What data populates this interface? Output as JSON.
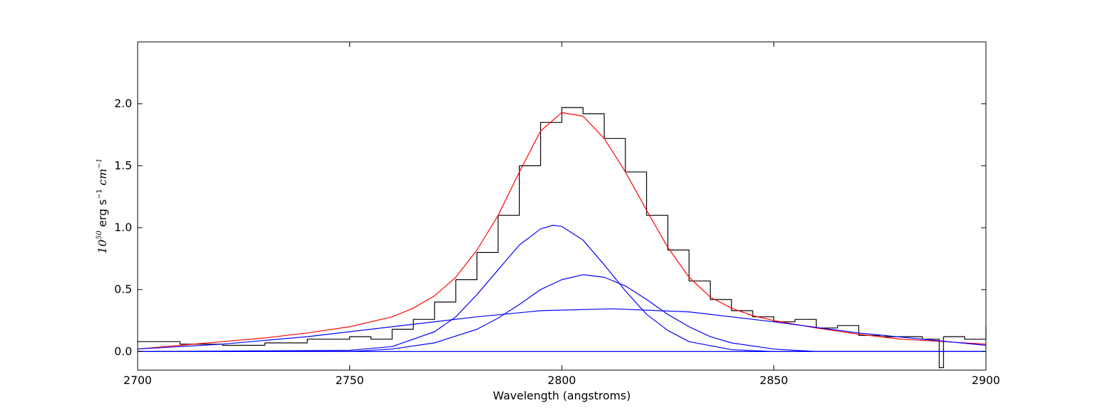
{
  "chart_data": {
    "type": "line",
    "title": "",
    "xlabel": "Wavelength (angstroms)",
    "ylabel": {
      "base": "10",
      "exponent": "50",
      "unit": "erg s",
      "unit_exponent": "−1",
      "unit2": "cm",
      "unit2_exponent": "−1"
    },
    "xlim": [
      2700,
      2900
    ],
    "ylim": [
      -0.15,
      2.5
    ],
    "xticks": [
      2700,
      2750,
      2800,
      2850,
      2900
    ],
    "xtick_labels": [
      "2700",
      "2750",
      "2800",
      "2850",
      "2900"
    ],
    "yticks": [
      0.0,
      0.5,
      1.0,
      1.5,
      2.0
    ],
    "ytick_labels": [
      "0.0",
      "0.5",
      "1.0",
      "1.5",
      "2.0"
    ],
    "grid": false,
    "legend": "none",
    "colors": {
      "data": "#000000",
      "total_fit": "#ff0000",
      "components": "#0000ff",
      "continuum": "#0000ff"
    },
    "series": [
      {
        "kind": "step",
        "color": "#000000",
        "x": [
          2700,
          2710,
          2720,
          2730,
          2740,
          2750,
          2755,
          2760,
          2765,
          2770,
          2775,
          2780,
          2785,
          2790,
          2795,
          2800,
          2805,
          2810,
          2815,
          2820,
          2825,
          2830,
          2835,
          2840,
          2845,
          2850,
          2855,
          2860,
          2865,
          2870,
          2875,
          2880,
          2885,
          2889,
          2890,
          2895,
          2900
        ],
        "y": [
          0.08,
          0.06,
          0.05,
          0.07,
          0.1,
          0.12,
          0.1,
          0.18,
          0.26,
          0.4,
          0.58,
          0.8,
          1.1,
          1.5,
          1.85,
          1.97,
          1.92,
          1.72,
          1.45,
          1.1,
          0.82,
          0.57,
          0.42,
          0.33,
          0.28,
          0.24,
          0.26,
          0.19,
          0.21,
          0.13,
          0.12,
          0.12,
          0.1,
          -0.13,
          0.12,
          0.1,
          0.2
        ]
      },
      {
        "kind": "line",
        "color": "#ff0000",
        "x": [
          2700,
          2710,
          2720,
          2730,
          2740,
          2750,
          2760,
          2765,
          2770,
          2775,
          2780,
          2785,
          2790,
          2795,
          2800,
          2805,
          2810,
          2815,
          2820,
          2825,
          2830,
          2835,
          2840,
          2845,
          2850,
          2860,
          2870,
          2880,
          2890,
          2900
        ],
        "y": [
          0.02,
          0.05,
          0.08,
          0.11,
          0.15,
          0.2,
          0.28,
          0.35,
          0.45,
          0.6,
          0.82,
          1.1,
          1.45,
          1.78,
          1.93,
          1.9,
          1.72,
          1.45,
          1.14,
          0.84,
          0.6,
          0.44,
          0.35,
          0.29,
          0.25,
          0.19,
          0.14,
          0.1,
          0.08,
          0.06
        ]
      },
      {
        "kind": "line",
        "color": "#0000ff",
        "x": [
          2700,
          2750,
          2760,
          2770,
          2775,
          2780,
          2785,
          2790,
          2795,
          2798,
          2800,
          2805,
          2810,
          2815,
          2820,
          2825,
          2830,
          2840,
          2850,
          2900
        ],
        "y": [
          0.0,
          0.01,
          0.04,
          0.16,
          0.28,
          0.46,
          0.66,
          0.86,
          0.99,
          1.02,
          1.01,
          0.9,
          0.7,
          0.49,
          0.3,
          0.17,
          0.08,
          0.015,
          0.0,
          0.0
        ]
      },
      {
        "kind": "line",
        "color": "#0000ff",
        "x": [
          2700,
          2750,
          2760,
          2770,
          2780,
          2785,
          2790,
          2795,
          2800,
          2805,
          2810,
          2815,
          2820,
          2825,
          2830,
          2835,
          2840,
          2850,
          2860,
          2900
        ],
        "y": [
          0.0,
          0.0,
          0.02,
          0.07,
          0.18,
          0.27,
          0.38,
          0.5,
          0.58,
          0.62,
          0.6,
          0.53,
          0.42,
          0.3,
          0.2,
          0.12,
          0.07,
          0.02,
          0.0,
          0.0
        ]
      },
      {
        "kind": "line",
        "color": "#0000ff",
        "x": [
          2700,
          2720,
          2740,
          2760,
          2780,
          2795,
          2812,
          2830,
          2850,
          2870,
          2900
        ],
        "y": [
          0.02,
          0.06,
          0.12,
          0.2,
          0.28,
          0.33,
          0.345,
          0.32,
          0.24,
          0.15,
          0.05
        ]
      },
      {
        "kind": "line",
        "color": "#0000ff",
        "x": [
          2700,
          2900
        ],
        "y": [
          0.0,
          0.0
        ]
      }
    ]
  }
}
